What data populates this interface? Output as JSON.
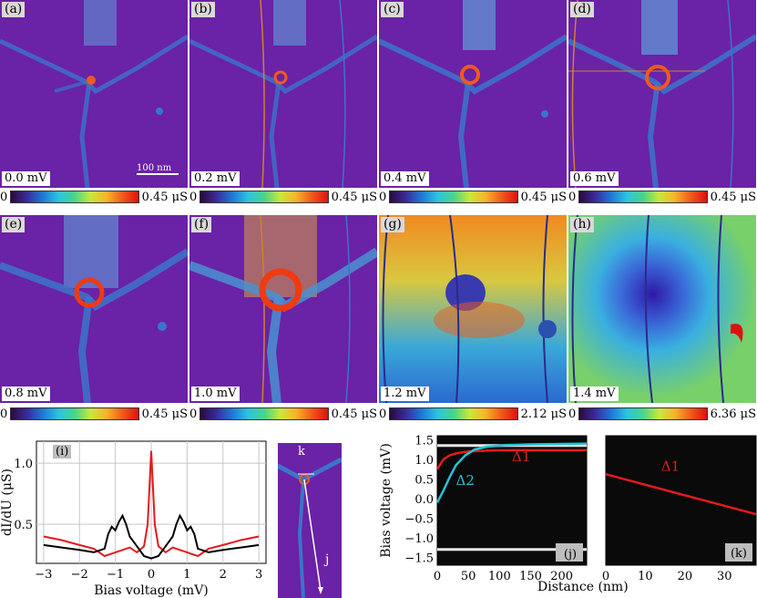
{
  "panels": [
    {
      "label": "(a)",
      "value": "0.0 mV",
      "cbar_min": "0",
      "cbar_max": "0.45 μS"
    },
    {
      "label": "(b)",
      "value": "0.2 mV",
      "cbar_min": "0",
      "cbar_max": "0.45 μS"
    },
    {
      "label": "(c)",
      "value": "0.4 mV",
      "cbar_min": "0",
      "cbar_max": "0.45 μS"
    },
    {
      "label": "(d)",
      "value": "0.6 mV",
      "cbar_min": "0",
      "cbar_max": "0.45 μS"
    },
    {
      "label": "(e)",
      "value": "0.8 mV",
      "cbar_min": "0",
      "cbar_max": "0.45 μS"
    },
    {
      "label": "(f)",
      "value": "1.0 mV",
      "cbar_min": "0",
      "cbar_max": "0.45 μS"
    },
    {
      "label": "(g)",
      "value": "1.2 mV",
      "cbar_min": "0",
      "cbar_max": "2.12 μS"
    },
    {
      "label": "(h)",
      "value": "1.4 mV",
      "cbar_min": "0",
      "cbar_max": "6.36 μS"
    }
  ],
  "scalebar": "100 nm",
  "colors": {
    "red": "#e41a1c",
    "black": "#000000",
    "cyan": "#23c4d6",
    "map_bg": "#6b1fa8"
  },
  "panel_i": {
    "label": "(i)",
    "xlabel": "Bias voltage (mV)",
    "ylabel": "dI/dU (μS)",
    "xticks": [
      "−3",
      "−2",
      "−1",
      "0",
      "1",
      "2",
      "3"
    ],
    "yticks": [
      "0.5",
      "1.0"
    ]
  },
  "line_panel": {
    "k": "k",
    "j": "j"
  },
  "panel_j": {
    "label": "(j)",
    "ylabel": "Bias voltage (mV)",
    "yticks": [
      "1.5",
      "1.0",
      "0.5",
      "0.0",
      "−0.5",
      "−1.0",
      "−1.5"
    ],
    "xticks": [
      "0",
      "50",
      "100",
      "150",
      "200"
    ],
    "delta1": "Δ1",
    "delta2": "Δ2"
  },
  "panel_k": {
    "label": "(k)",
    "xticks": [
      "0",
      "10",
      "20",
      "30"
    ],
    "delta1": "Δ1"
  },
  "shared_xlabel": "Distance (nm)",
  "chart_data": [
    {
      "type": "line",
      "title": "",
      "xlabel": "Bias voltage (mV)",
      "ylabel": "dI/dU (μS)",
      "xlim": [
        -3.2,
        3.2
      ],
      "ylim": [
        0.18,
        1.18
      ],
      "grid": true,
      "series": [
        {
          "color": "red",
          "x": [
            -3,
            -2.5,
            -2,
            -1.6,
            -1.3,
            -1.1,
            -1.0,
            -0.8,
            -0.6,
            -0.4,
            -0.2,
            -0.1,
            0,
            0.1,
            0.2,
            0.4,
            0.6,
            0.8,
            1.0,
            1.1,
            1.3,
            1.6,
            2,
            2.5,
            3
          ],
          "y": [
            0.4,
            0.37,
            0.33,
            0.3,
            0.24,
            0.26,
            0.27,
            0.29,
            0.31,
            0.27,
            0.32,
            0.5,
            1.1,
            0.5,
            0.32,
            0.27,
            0.31,
            0.29,
            0.27,
            0.26,
            0.24,
            0.3,
            0.33,
            0.37,
            0.4
          ]
        },
        {
          "color": "black",
          "x": [
            -3,
            -2.5,
            -2,
            -1.6,
            -1.3,
            -1.2,
            -1.1,
            -1.0,
            -0.9,
            -0.8,
            -0.7,
            -0.6,
            -0.4,
            -0.2,
            0,
            0.2,
            0.4,
            0.6,
            0.7,
            0.8,
            0.9,
            1.0,
            1.1,
            1.2,
            1.3,
            1.6,
            2,
            2.5,
            3
          ],
          "y": [
            0.33,
            0.31,
            0.29,
            0.27,
            0.3,
            0.42,
            0.48,
            0.45,
            0.52,
            0.57,
            0.5,
            0.4,
            0.32,
            0.24,
            0.22,
            0.24,
            0.32,
            0.4,
            0.5,
            0.57,
            0.52,
            0.45,
            0.48,
            0.42,
            0.3,
            0.27,
            0.29,
            0.31,
            0.33
          ]
        }
      ]
    },
    {
      "type": "line",
      "title": "",
      "xlabel": "Distance (nm)",
      "ylabel": "Bias voltage (mV)",
      "xlim": [
        0,
        240
      ],
      "ylim": [
        -1.7,
        1.6
      ],
      "series": [
        {
          "name": "Δ1",
          "color": "red",
          "x": [
            0,
            10,
            20,
            30,
            50,
            80,
            120,
            160,
            200,
            240
          ],
          "y": [
            0.75,
            1.0,
            1.1,
            1.15,
            1.2,
            1.22,
            1.23,
            1.23,
            1.23,
            1.23
          ]
        },
        {
          "name": "Δ2",
          "color": "cyan",
          "x": [
            0,
            10,
            20,
            30,
            45,
            60,
            80,
            110,
            150,
            200,
            240
          ],
          "y": [
            -0.1,
            0.2,
            0.55,
            0.85,
            1.1,
            1.25,
            1.32,
            1.36,
            1.38,
            1.39,
            1.4
          ]
        }
      ]
    },
    {
      "type": "line",
      "title": "",
      "xlabel": "Distance (nm)",
      "xlim": [
        0,
        38
      ],
      "ylim": [
        -1.7,
        1.6
      ],
      "series": [
        {
          "name": "Δ1",
          "color": "red",
          "x": [
            0,
            38
          ],
          "y": [
            0.62,
            -0.4
          ]
        }
      ]
    }
  ]
}
